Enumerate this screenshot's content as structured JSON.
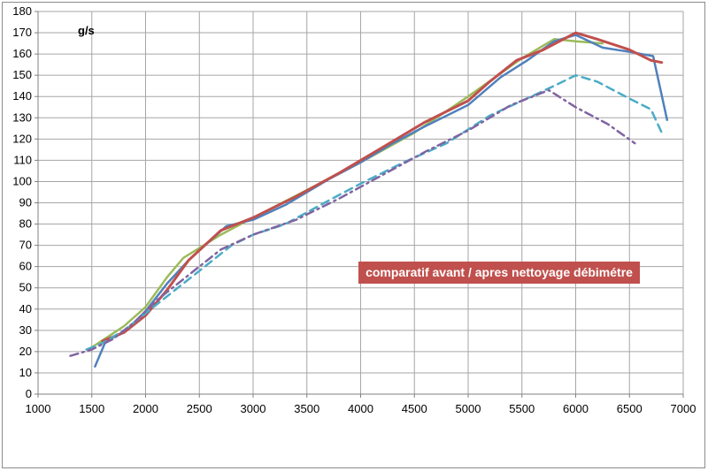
{
  "chart_data": {
    "type": "line",
    "title": "comparatif avant / apres nettoyage débimétre",
    "ylabel": "g/s",
    "xlabel": "",
    "xlim": [
      1000,
      7000
    ],
    "ylim": [
      0,
      180
    ],
    "grid": true,
    "xticks": [
      "1000",
      "1500",
      "2000",
      "2500",
      "3000",
      "3500",
      "4000",
      "4500",
      "5000",
      "5500",
      "6000",
      "6500",
      "7000"
    ],
    "yticks": [
      "0",
      "10",
      "20",
      "30",
      "40",
      "50",
      "60",
      "70",
      "80",
      "90",
      "100",
      "110",
      "120",
      "130",
      "140",
      "150",
      "160",
      "170",
      "180"
    ],
    "series": [
      {
        "name": "green",
        "color": "#9bbb59",
        "style": "solid",
        "x": [
          1500,
          1800,
          2000,
          2200,
          2350,
          2700,
          3000,
          3500,
          4000,
          4500,
          5000,
          5500,
          5800,
          6000,
          6250
        ],
        "y": [
          22,
          32,
          41,
          55,
          64,
          75,
          83,
          96,
          109,
          123,
          140,
          158,
          167,
          166,
          165
        ]
      },
      {
        "name": "blue",
        "color": "#4f81bd",
        "style": "solid",
        "x": [
          1530,
          1630,
          1800,
          2000,
          2200,
          2400,
          2750,
          3000,
          3300,
          3700,
          4000,
          4300,
          4600,
          5000,
          5300,
          5550,
          5800,
          6000,
          6250,
          6500,
          6720,
          6850
        ],
        "y": [
          13,
          25,
          29,
          39,
          52,
          63,
          79,
          82,
          89,
          101,
          109,
          118,
          126,
          136,
          149,
          157,
          166,
          169,
          163,
          161,
          159,
          129
        ]
      },
      {
        "name": "red",
        "color": "#c0504d",
        "style": "solid",
        "x": [
          1600,
          1800,
          2000,
          2200,
          2400,
          2700,
          3000,
          3400,
          3800,
          4200,
          4600,
          5000,
          5200,
          5450,
          5700,
          6000,
          6200,
          6500,
          6700,
          6800
        ],
        "y": [
          25,
          29,
          37,
          49,
          63,
          77,
          83,
          93,
          104,
          116,
          128,
          138,
          147,
          157,
          162,
          170,
          167,
          162,
          157,
          156
        ],
        "width": 3
      },
      {
        "name": "cyan dashed",
        "color": "#4bacc6",
        "style": "dashed",
        "x": [
          1450,
          1600,
          1800,
          2000,
          2200,
          2500,
          2800,
          3000,
          3300,
          3700,
          4000,
          4400,
          4800,
          5200,
          5500,
          5800,
          6000,
          6200,
          6500,
          6700,
          6800
        ],
        "y": [
          21,
          24,
          30,
          38,
          46,
          58,
          70,
          75,
          80,
          91,
          99,
          109,
          118,
          131,
          138,
          145,
          150,
          147,
          139,
          134,
          123
        ]
      },
      {
        "name": "purple dash-dot",
        "color": "#8064a2",
        "style": "dashdot",
        "x": [
          1300,
          1500,
          1700,
          1900,
          2100,
          2400,
          2700,
          3000,
          3400,
          3800,
          4200,
          4600,
          5000,
          5400,
          5750,
          6000,
          6300,
          6550
        ],
        "y": [
          18,
          21,
          26,
          34,
          44,
          56,
          68,
          75,
          82,
          92,
          103,
          114,
          124,
          136,
          143,
          135,
          127,
          118
        ]
      }
    ]
  }
}
